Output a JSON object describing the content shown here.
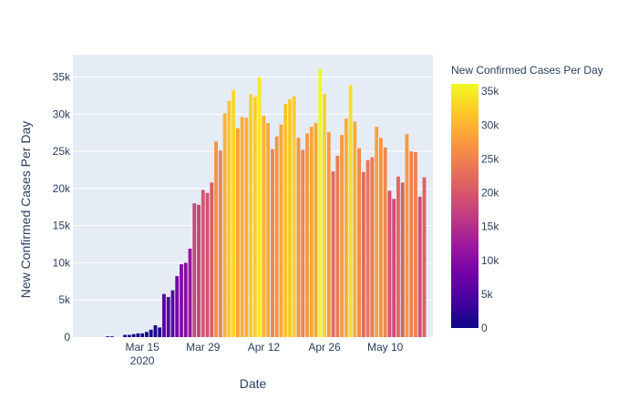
{
  "chart_data": {
    "type": "bar",
    "xlabel": "Date",
    "ylabel": "New Confirmed Cases Per Day",
    "ylim": [
      0,
      38000
    ],
    "yticks": [
      0,
      5000,
      10000,
      15000,
      20000,
      25000,
      30000,
      35000
    ],
    "ytick_labels": [
      "0",
      "5k",
      "10k",
      "15k",
      "20k",
      "25k",
      "30k",
      "35k"
    ],
    "x_start": "2020-02-29",
    "x_range": [
      "2020-02-28",
      "2020-05-21"
    ],
    "xticks": [
      "2020-03-15",
      "2020-03-29",
      "2020-04-12",
      "2020-04-26",
      "2020-05-10"
    ],
    "xtick_labels": [
      "Mar 15",
      "Mar 29",
      "Apr 12",
      "Apr 26",
      "May 10"
    ],
    "xtick_year_label": "2020",
    "grid": true,
    "values": [
      0,
      0,
      0,
      0,
      0,
      0,
      0,
      100,
      100,
      0,
      0,
      300,
      300,
      400,
      500,
      500,
      700,
      1000,
      1600,
      1300,
      5800,
      5400,
      6300,
      8200,
      9800,
      10000,
      11900,
      18000,
      17800,
      19800,
      19400,
      20800,
      26300,
      25100,
      30100,
      31800,
      33200,
      28100,
      29600,
      29500,
      32700,
      32300,
      35000,
      29800,
      28800,
      25300,
      27000,
      28600,
      31400,
      32000,
      32400,
      26800,
      25200,
      27400,
      28300,
      28800,
      36100,
      32700,
      27600,
      22300,
      24400,
      27200,
      29400,
      33900,
      29000,
      25400,
      22200,
      23800,
      24200,
      28300,
      26800,
      25500,
      19700,
      18600,
      21600,
      20800,
      27300,
      25000,
      24900,
      18900,
      21500
    ],
    "colorbar": {
      "title": "New Confirmed Cases Per Day",
      "min": 0,
      "max": 36100,
      "ticks": [
        0,
        5000,
        10000,
        15000,
        20000,
        25000,
        30000,
        35000
      ],
      "tick_labels": [
        "0",
        "5k",
        "10k",
        "15k",
        "20k",
        "25k",
        "30k",
        "35k"
      ],
      "colorscale": [
        "#0d0887",
        "#46039f",
        "#7201a8",
        "#9c179e",
        "#bd3786",
        "#d8576b",
        "#ed7953",
        "#fb9f3a",
        "#fdca26",
        "#f0f921"
      ]
    }
  },
  "colors": {
    "plot_background": "#e5ecf6",
    "gridline": "#ffffff",
    "text": "#2a3f5f"
  }
}
